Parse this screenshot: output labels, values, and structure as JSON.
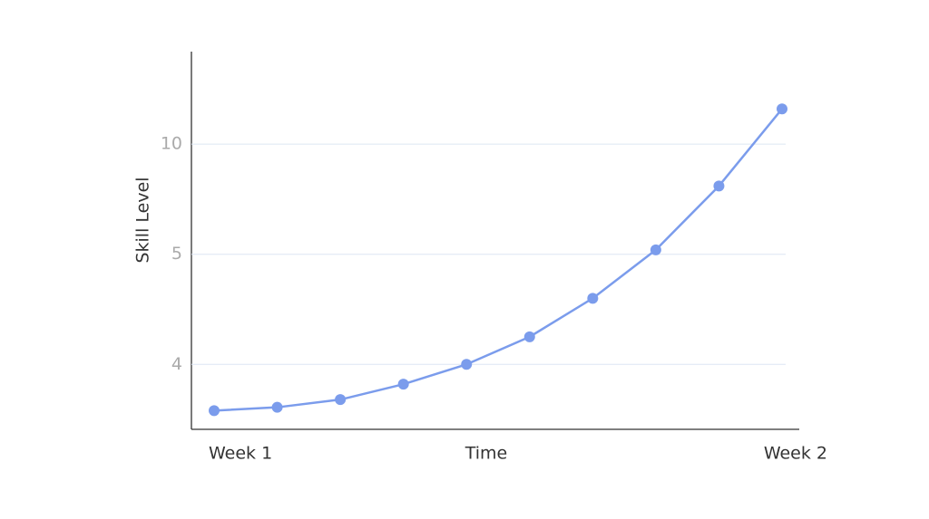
{
  "chart_data": {
    "type": "line",
    "x_label": "Time",
    "y_label": "Skill Level",
    "categories": [
      "Week 1",
      null,
      null,
      null,
      null,
      null,
      null,
      null,
      null,
      "Week 2"
    ],
    "series": [
      {
        "name": "Skill Level",
        "color": "#7b9cec",
        "values": [
          3.58,
          3.61,
          3.68,
          3.82,
          4,
          4.25,
          4.6,
          5.2,
          8.1,
          11.6
        ]
      }
    ],
    "ylim": [
      3.41,
      14.2
    ],
    "yticks": [
      4,
      5,
      10
    ],
    "grid": true
  }
}
